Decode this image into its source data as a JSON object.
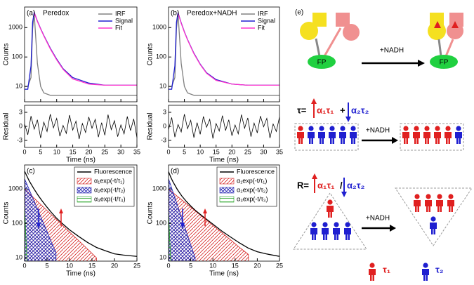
{
  "chart_data": [
    {
      "type": "line",
      "panel_label": "(a)",
      "title": "Peredox",
      "xlabel": "Time (ns)",
      "ylabel": "Counts",
      "log_y": true,
      "legend": "upper right",
      "x": [
        0,
        1,
        2,
        2.5,
        3,
        4,
        5,
        6,
        8,
        10,
        12,
        15,
        20,
        25,
        30,
        35
      ],
      "series": [
        {
          "name": "IRF",
          "color": "#808080",
          "values": [
            10,
            10,
            20,
            900,
            3000,
            60,
            10,
            6,
            5,
            5,
            5,
            5,
            5,
            5,
            5,
            5
          ]
        },
        {
          "name": "Signal",
          "color": "#1f1fd0",
          "values": [
            8,
            8,
            50,
            1500,
            3300,
            1650,
            920,
            540,
            200,
            85,
            40,
            20,
            13,
            11,
            11,
            11
          ]
        },
        {
          "name": "Fit",
          "color": "#ff33cc",
          "values": [
            null,
            null,
            null,
            null,
            3200,
            1600,
            900,
            520,
            190,
            80,
            38,
            18,
            12,
            11,
            11,
            11
          ]
        }
      ],
      "xlim": [
        0,
        35
      ],
      "xticks": [
        0,
        5,
        10,
        15,
        20,
        25,
        30,
        35
      ],
      "ylim": [
        3,
        5000
      ],
      "yticks": [
        10,
        100,
        1000
      ],
      "residual": {
        "ylabel": "Residual",
        "color": "#000000",
        "ylim": [
          -4.5,
          4.5
        ],
        "yticks": [
          -3,
          0,
          3
        ],
        "x": [
          0,
          1,
          2,
          3,
          4,
          5,
          6,
          7,
          8,
          9,
          10,
          11,
          12,
          13,
          14,
          15,
          16,
          17,
          18,
          19,
          20,
          21,
          22,
          23,
          24,
          25,
          26,
          27,
          28,
          29,
          30,
          31,
          32,
          33,
          34,
          35
        ],
        "values": [
          0.5,
          -1.8,
          2.2,
          -0.6,
          1.4,
          -2.5,
          0.9,
          -1.1,
          2.6,
          -0.3,
          1.7,
          -2.1,
          0.2,
          -1.5,
          2.4,
          -0.8,
          1.1,
          -2.7,
          0.6,
          -1.3,
          2.0,
          -0.4,
          1.5,
          -2.3,
          0.8,
          -1.9,
          2.5,
          -0.7,
          1.2,
          -2.2,
          0.3,
          -1.6,
          2.1,
          -0.9,
          1.6,
          -2.4
        ]
      }
    },
    {
      "type": "line",
      "panel_label": "(b)",
      "title": "Peredox+NADH",
      "xlabel": "Time (ns)",
      "ylabel": "Counts",
      "log_y": true,
      "legend": "upper right",
      "x": [
        0,
        1,
        2,
        2.5,
        3,
        4,
        5,
        6,
        8,
        10,
        12,
        15,
        20,
        25,
        30,
        35
      ],
      "series": [
        {
          "name": "IRF",
          "color": "#808080",
          "values": [
            10,
            10,
            20,
            900,
            3000,
            60,
            10,
            6,
            5,
            5,
            5,
            5,
            5,
            5,
            5,
            5
          ]
        },
        {
          "name": "Signal",
          "color": "#1f1fd0",
          "values": [
            8,
            8,
            50,
            1500,
            3200,
            1450,
            720,
            390,
            135,
            57,
            29,
            17,
            12,
            11,
            11,
            11
          ]
        },
        {
          "name": "Fit",
          "color": "#ff33cc",
          "values": [
            null,
            null,
            null,
            null,
            3100,
            1400,
            700,
            380,
            130,
            55,
            28,
            16,
            12,
            11,
            11,
            11
          ]
        }
      ],
      "xlim": [
        0,
        35
      ],
      "xticks": [
        0,
        5,
        10,
        15,
        20,
        25,
        30,
        35
      ],
      "ylim": [
        3,
        5000
      ],
      "yticks": [
        10,
        100,
        1000
      ],
      "residual": {
        "ylabel": "Residual",
        "color": "#000000",
        "ylim": [
          -4.5,
          4.5
        ],
        "yticks": [
          -3,
          0,
          3
        ],
        "x": [
          0,
          1,
          2,
          3,
          4,
          5,
          6,
          7,
          8,
          9,
          10,
          11,
          12,
          13,
          14,
          15,
          16,
          17,
          18,
          19,
          20,
          21,
          22,
          23,
          24,
          25,
          26,
          27,
          28,
          29,
          30,
          31,
          32,
          33,
          34,
          35
        ],
        "values": [
          -0.7,
          1.9,
          -2.3,
          0.4,
          -1.2,
          2.6,
          -0.5,
          1.3,
          -2.4,
          0.8,
          -1.7,
          2.1,
          -0.2,
          1.5,
          -2.6,
          0.6,
          -1.0,
          2.3,
          -0.9,
          1.4,
          -2.0,
          0.3,
          -1.6,
          2.5,
          -0.4,
          1.8,
          -2.2,
          0.7,
          -1.4,
          2.2,
          -0.1,
          1.7,
          -2.5,
          0.5,
          -1.1,
          2.0
        ]
      }
    },
    {
      "type": "area",
      "panel_label": "(c)",
      "xlabel": "Time (ns)",
      "ylabel": "Counts",
      "log_y": true,
      "legend": "upper right",
      "x": [
        0,
        0.5,
        1,
        2,
        3,
        4,
        5,
        6,
        7,
        8,
        10,
        12,
        14,
        16,
        18,
        20,
        22,
        25
      ],
      "series": [
        {
          "name": "Fluorescence",
          "color": "#000000",
          "style": "line",
          "values": [
            3300,
            2400,
            1750,
            1050,
            660,
            435,
            295,
            206,
            147,
            110,
            65,
            42,
            28,
            20,
            16,
            13,
            12,
            11
          ]
        },
        {
          "name": "α₁exp(-t/τ₁)",
          "color": "#d62020",
          "style": "hatch",
          "hatch": "diagonal",
          "values": [
            1000,
            866,
            750,
            562,
            421,
            316,
            237,
            178,
            133,
            100,
            56,
            32,
            18,
            10,
            null,
            null,
            null,
            null
          ]
        },
        {
          "name": "α₂exp(-t/τ₂)",
          "color": "#1f1fb0",
          "style": "hatch",
          "hatch": "cross",
          "values": [
            2000,
            1404,
            984,
            484,
            238,
            117,
            58,
            28,
            14,
            null,
            null,
            null,
            null,
            null,
            null,
            null,
            null,
            null
          ]
        },
        {
          "name": "α₃exp(-t/τ₃)",
          "color": "#20a020",
          "style": "hatch",
          "hatch": "horizontal",
          "values": [
            300,
            10,
            null,
            null,
            null,
            null,
            null,
            null,
            null,
            null,
            null,
            null,
            null,
            null,
            null,
            null,
            null,
            null
          ]
        }
      ],
      "xlim": [
        0,
        25
      ],
      "xticks": [
        0,
        5,
        10,
        15,
        20,
        25
      ],
      "ylim": [
        8,
        5000
      ],
      "yticks": [
        10,
        100,
        1000
      ]
    },
    {
      "type": "area",
      "panel_label": "(d)",
      "xlabel": "Time (ns)",
      "ylabel": "Counts",
      "log_y": true,
      "legend": "upper right",
      "x": [
        0,
        0.5,
        1,
        2,
        3,
        4,
        5,
        6,
        7,
        8,
        10,
        12,
        14,
        16,
        18,
        20,
        22,
        25
      ],
      "series": [
        {
          "name": "Fluorescence",
          "color": "#000000",
          "style": "line",
          "values": [
            3200,
            2200,
            1620,
            960,
            625,
            437,
            320,
            242,
            190,
            150,
            95,
            60,
            40,
            27,
            19,
            15,
            13,
            11
          ]
        },
        {
          "name": "α₁exp(-t/τ₁)",
          "color": "#d62020",
          "style": "hatch",
          "hatch": "diagonal",
          "values": [
            1000,
            885,
            784,
            614,
            481,
            377,
            296,
            232,
            181,
            142,
            87,
            54,
            33,
            20,
            12.5,
            null,
            null,
            null
          ]
        },
        {
          "name": "α₂exp(-t/τ₂)",
          "color": "#1f1fb0",
          "style": "hatch",
          "hatch": "cross",
          "values": [
            2000,
            1285,
            826,
            341,
            141,
            58,
            24,
            10,
            null,
            null,
            null,
            null,
            null,
            null,
            null,
            null,
            null,
            null
          ]
        },
        {
          "name": "α₃exp(-t/τ₃)",
          "color": "#20a020",
          "style": "hatch",
          "hatch": "horizontal",
          "values": [
            200,
            8,
            null,
            null,
            null,
            null,
            null,
            null,
            null,
            null,
            null,
            null,
            null,
            null,
            null,
            null,
            null,
            null
          ]
        }
      ],
      "xlim": [
        0,
        25
      ],
      "xticks": [
        0,
        5,
        10,
        15,
        20,
        25
      ],
      "ylim": [
        8,
        5000
      ],
      "yticks": [
        10,
        100,
        1000
      ]
    }
  ],
  "panel_e": {
    "label": "(e)",
    "nadh_top": "+NADH",
    "fp_left": "FP",
    "fp_right": "FP",
    "tau_eq": "τ=",
    "tau_a1": "α₁τ₁",
    "tau_plus": "+",
    "tau_a2": "α₂τ₂",
    "nadh_mid": "+NADH",
    "r_eq": "R=",
    "r_a1": "α₁τ₁",
    "r_slash": "/",
    "r_a2": "α₂τ₂",
    "nadh_bottom": "+NADH",
    "legend_t1": "τ₁",
    "legend_t2": "τ₂"
  }
}
